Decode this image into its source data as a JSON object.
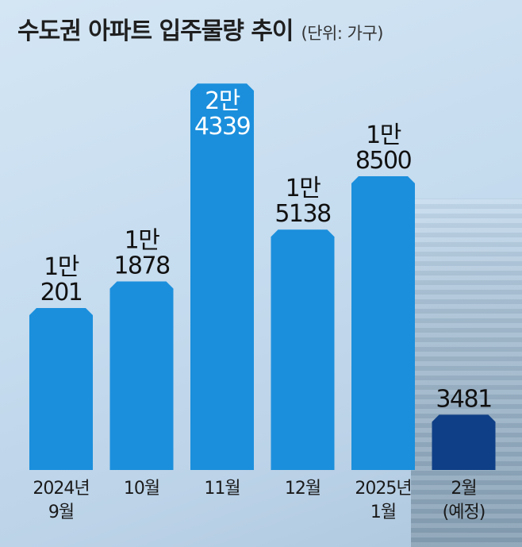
{
  "title": "수도권 아파트 입주물량 추이",
  "unit_note": "(단위: 가구)",
  "colors": {
    "bar": "#1b8fdc",
    "bar_forecast": "#0f3f86",
    "label_dark": "#111111",
    "label_light": "#ffffff"
  },
  "chart_data": {
    "type": "bar",
    "title": "수도권 아파트 입주물량 추이",
    "unit": "(단위: 가구)",
    "categories": [
      [
        "2024년",
        "9월"
      ],
      [
        "10월"
      ],
      [
        "11월"
      ],
      [
        "12월"
      ],
      [
        "2025년",
        "1월"
      ],
      [
        "2월",
        "(예정)"
      ]
    ],
    "values": [
      10201,
      11878,
      24339,
      15138,
      18500,
      3481
    ],
    "value_labels": [
      [
        "1만",
        "201"
      ],
      [
        "1만",
        "1878"
      ],
      [
        "2만",
        "4339"
      ],
      [
        "1만",
        "5138"
      ],
      [
        "1만",
        "8500"
      ],
      [
        "3481"
      ]
    ],
    "forecast": [
      false,
      false,
      false,
      false,
      false,
      true
    ],
    "label_inside_bar": [
      false,
      false,
      true,
      false,
      false,
      false
    ],
    "ylim": [
      0,
      25000
    ],
    "grid": false,
    "legend": "none"
  }
}
